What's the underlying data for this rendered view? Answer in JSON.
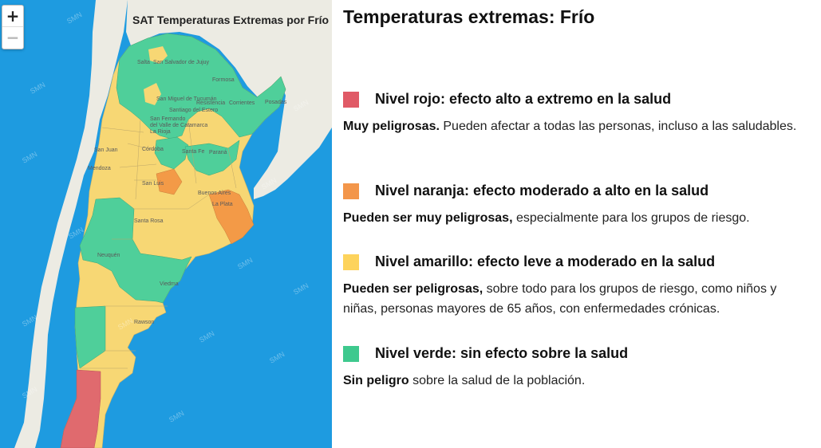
{
  "map": {
    "title": "SAT Temperaturas Extremas por Frío",
    "zoom_in": "+",
    "zoom_out": "−",
    "watermark": "SMN",
    "colors": {
      "ocean": "#1e9be0",
      "neighbor_land": "#ecebe3",
      "green": "#4fcf9a",
      "yellow": "#f7d774",
      "orange": "#f39a47",
      "red": "#e06a6e"
    },
    "labels": [
      "Salta",
      "San Salvador de Jujuy",
      "Formosa",
      "Posadas",
      "Corrientes",
      "Resistencia",
      "San Miguel de Tucumán",
      "Santiago del Estero",
      "San Fernando del Valle de Catamarca",
      "La Rioja",
      "San Juan",
      "Córdoba",
      "Santa Fe",
      "Paraná",
      "Mendoza",
      "San Luis",
      "Buenos Aires",
      "La Plata",
      "Santa Rosa",
      "Neuquén",
      "Viedma",
      "Rawson"
    ]
  },
  "legend": {
    "title": "Temperaturas extremas: Frío",
    "levels": [
      {
        "color": "#e05a66",
        "title": "Nivel rojo: efecto alto a extremo en la salud",
        "bold": "Muy peligrosas.",
        "text": " Pueden afectar a todas las personas, incluso a las saludables."
      },
      {
        "color": "#f3964a",
        "title": "Nivel naranja: efecto moderado a alto en la salud",
        "bold": "Pueden ser muy peligrosas,",
        "text": " especialmente para los grupos de riesgo."
      },
      {
        "color": "#fdd35c",
        "title": "Nivel amarillo: efecto leve a moderado en la salud",
        "bold": "Pueden ser peligrosas,",
        "text": " sobre todo para los grupos de riesgo, como niños y niñas, personas mayores de 65 años, con enfermedades crónicas."
      },
      {
        "color": "#3ec98e",
        "title": "Nivel verde: sin efecto sobre la salud",
        "bold": "Sin peligro",
        "text": " sobre la salud de la población."
      }
    ]
  }
}
